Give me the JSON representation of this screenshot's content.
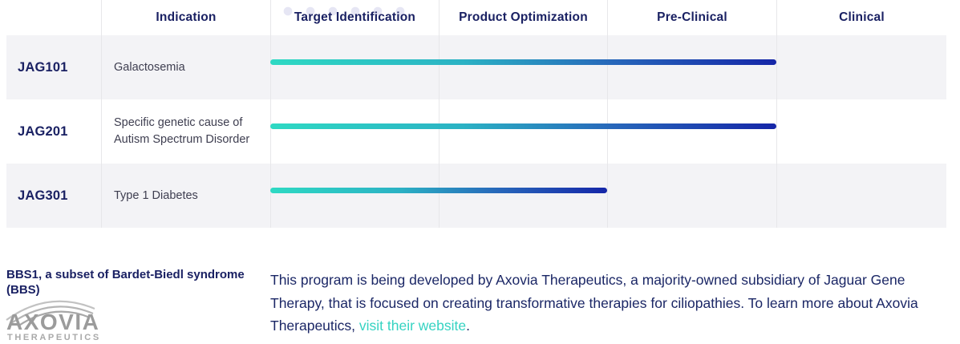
{
  "table": {
    "columns": [
      "Indication",
      "Target Identification",
      "Product Optimization",
      "Pre-Clinical",
      "Clinical"
    ],
    "rows": [
      {
        "program": "JAG101",
        "indication": "Galactosemia",
        "progress_stages": 3
      },
      {
        "program": "JAG201",
        "indication": "Specific genetic cause of Autism Spectrum Disorder",
        "progress_stages": 3
      },
      {
        "program": "JAG301",
        "indication": "Type 1 Diabetes",
        "progress_stages": 2
      }
    ]
  },
  "footer": {
    "heading": "BBS1, a subset of Bardet-Biedl syndrome (BBS)",
    "logo_name": "AXOVIA",
    "logo_subname": "THERAPEUTICS",
    "paragraph_text": "This program is being developed by Axovia Therapeutics, a majority-owned subsidiary of Jaguar Gene Therapy, that is focused on creating transformative therapies for ciliopathies. To learn more about Axovia Therapeutics, ",
    "link_text": "visit their website",
    "paragraph_end": "."
  },
  "colors": {
    "heading_navy": "#1a2163",
    "body_navy": "#1b2766",
    "bar_gradient_start": "#2ed9c3",
    "bar_gradient_end": "#1526a8",
    "link_teal": "#35d3c2",
    "row_shade": "#f3f3f6",
    "divider": "#e7e7ea",
    "dot_pattern": "#e6e6f4",
    "logo_gray": "#9b9b9b"
  }
}
